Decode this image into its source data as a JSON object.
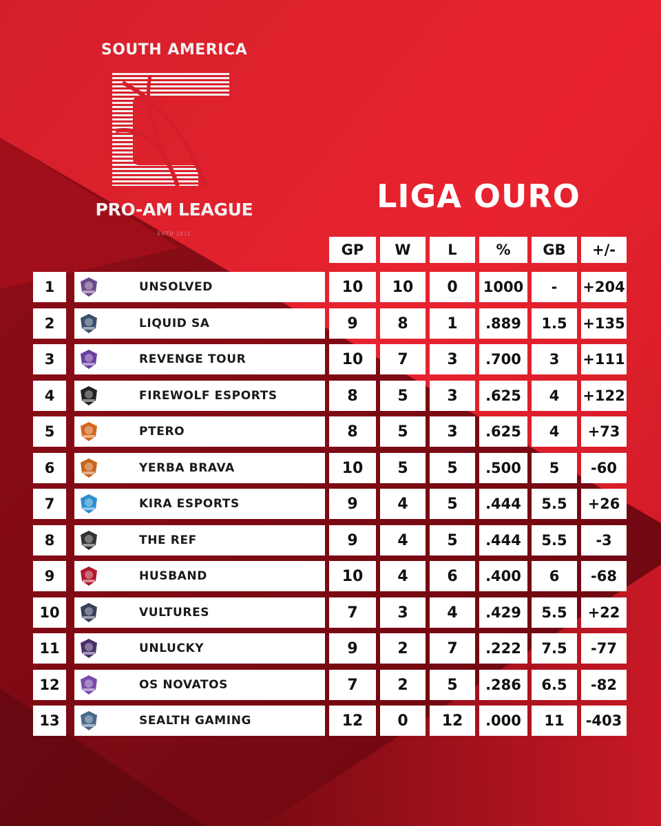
{
  "logo": {
    "top_text": "SOUTH AMERICA",
    "bottom_text": "PRO-AM LEAGUE",
    "estd_text": "ESTD 2021"
  },
  "title": "LIGA OURO",
  "columns": [
    "GP",
    "W",
    "L",
    "%",
    "GB",
    "+/-"
  ],
  "teams": [
    {
      "rank": "1",
      "name": "UNSOLVED",
      "gp": "10",
      "w": "10",
      "l": "0",
      "pct": "1000",
      "gb": "-",
      "pm": "+204",
      "logo_icon": "unsolved-logo",
      "logo_color": "#6b4a8a"
    },
    {
      "rank": "2",
      "name": "LIQUID SA",
      "gp": "9",
      "w": "8",
      "l": "1",
      "pct": ".889",
      "gb": "1.5",
      "pm": "+135",
      "logo_icon": "liquid-sa-logo",
      "logo_color": "#3b4f6b"
    },
    {
      "rank": "3",
      "name": "REVENGE TOUR",
      "gp": "10",
      "w": "7",
      "l": "3",
      "pct": ".700",
      "gb": "3",
      "pm": "+111",
      "logo_icon": "revenge-tour-logo",
      "logo_color": "#6a3fa0"
    },
    {
      "rank": "4",
      "name": "FIREWOLF ESPORTS",
      "gp": "8",
      "w": "5",
      "l": "3",
      "pct": ".625",
      "gb": "4",
      "pm": "+122",
      "logo_icon": "firewolf-logo",
      "logo_color": "#222222"
    },
    {
      "rank": "5",
      "name": "PTERO",
      "gp": "8",
      "w": "5",
      "l": "3",
      "pct": ".625",
      "gb": "4",
      "pm": "+73",
      "logo_icon": "ptero-logo",
      "logo_color": "#d2691e"
    },
    {
      "rank": "6",
      "name": "YERBA BRAVA",
      "gp": "10",
      "w": "5",
      "l": "5",
      "pct": ".500",
      "gb": "5",
      "pm": "-60",
      "logo_icon": "yerba-brava-logo",
      "logo_color": "#c8641e"
    },
    {
      "rank": "7",
      "name": "KIRA ESPORTS",
      "gp": "9",
      "w": "4",
      "l": "5",
      "pct": ".444",
      "gb": "5.5",
      "pm": "+26",
      "logo_icon": "kira-logo",
      "logo_color": "#2a8fd0"
    },
    {
      "rank": "8",
      "name": "THE REF",
      "gp": "9",
      "w": "4",
      "l": "5",
      "pct": ".444",
      "gb": "5.5",
      "pm": "-3",
      "logo_icon": "the-ref-logo",
      "logo_color": "#333333"
    },
    {
      "rank": "9",
      "name": "HUSBAND",
      "gp": "10",
      "w": "4",
      "l": "6",
      "pct": ".400",
      "gb": "6",
      "pm": "-68",
      "logo_icon": "husband-logo",
      "logo_color": "#b0182c"
    },
    {
      "rank": "10",
      "name": "VULTURES",
      "gp": "7",
      "w": "3",
      "l": "4",
      "pct": ".429",
      "gb": "5.5",
      "pm": "+22",
      "logo_icon": "vultures-logo",
      "logo_color": "#3a3f5a"
    },
    {
      "rank": "11",
      "name": "UNLUCKY",
      "gp": "9",
      "w": "2",
      "l": "7",
      "pct": ".222",
      "gb": "7.5",
      "pm": "-77",
      "logo_icon": "unlucky-logo",
      "logo_color": "#4a2f6a"
    },
    {
      "rank": "12",
      "name": "OS NOVATOS",
      "gp": "7",
      "w": "2",
      "l": "5",
      "pct": ".286",
      "gb": "6.5",
      "pm": "-82",
      "logo_icon": "os-novatos-logo",
      "logo_color": "#7a4aa8"
    },
    {
      "rank": "13",
      "name": "SEALTH GAMING",
      "gp": "12",
      "w": "0",
      "l": "12",
      "pct": ".000",
      "gb": "11",
      "pm": "-403",
      "logo_icon": "sealth-gaming-logo",
      "logo_color": "#4a6a8a"
    }
  ],
  "colors": {
    "background_red": "#e0222d",
    "background_dark": "#8a0c16",
    "cell_white": "#ffffff",
    "text_dark": "#111111"
  }
}
